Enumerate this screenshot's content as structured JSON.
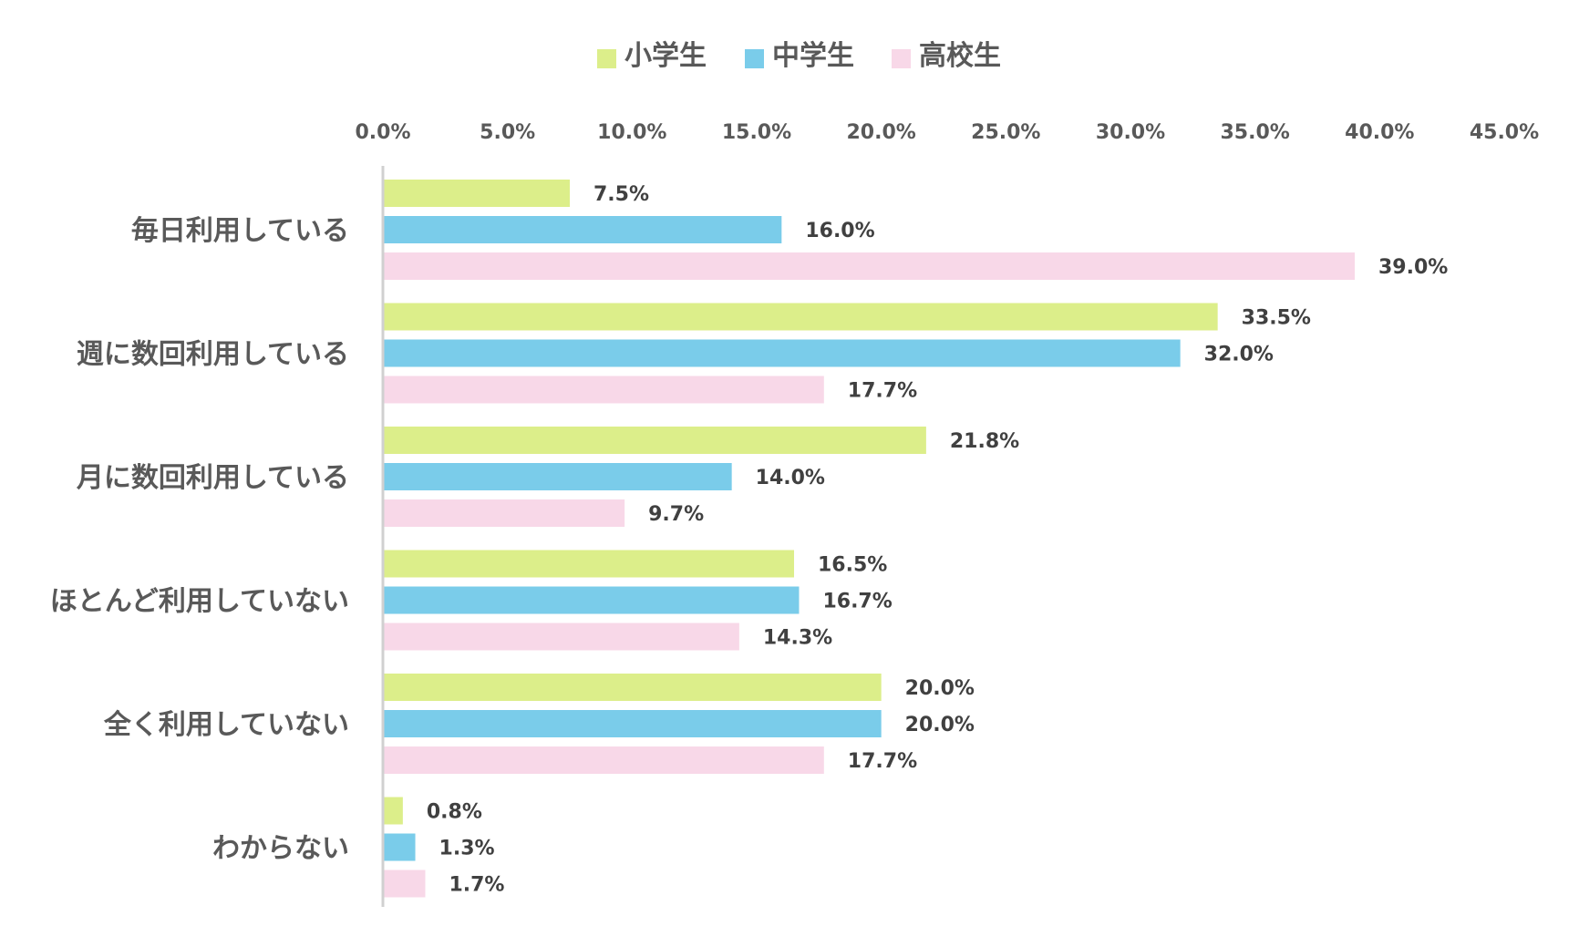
{
  "chart_data": {
    "type": "bar",
    "orientation": "horizontal",
    "categories": [
      "毎日利用している",
      "週に数回利用している",
      "月に数回利用している",
      "ほとんど利用していない",
      "全く利用していない",
      "わからない"
    ],
    "series": [
      {
        "name": "小学生",
        "color": "#dcee8a",
        "values": [
          7.5,
          33.5,
          21.8,
          16.5,
          20.0,
          0.8
        ]
      },
      {
        "name": "中学生",
        "color": "#7accea",
        "values": [
          16.0,
          32.0,
          14.0,
          16.7,
          20.0,
          1.3
        ]
      },
      {
        "name": "高校生",
        "color": "#f8d8e8",
        "values": [
          39.0,
          17.7,
          9.7,
          14.3,
          17.7,
          1.7
        ]
      }
    ],
    "xlim": [
      0,
      45
    ],
    "xticks": [
      0,
      5,
      10,
      15,
      20,
      25,
      30,
      35,
      40,
      45
    ],
    "tick_format": "%",
    "value_format": "one-decimal-percent",
    "legend_position": "top",
    "axis_position": "top",
    "grid": false
  }
}
